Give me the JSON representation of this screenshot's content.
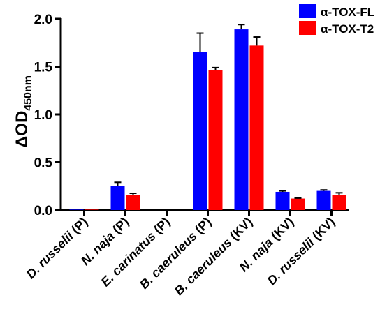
{
  "chart_data": {
    "type": "bar",
    "ylabel": "ΔOD",
    "ylabel_subscript": "450nm",
    "ylim": [
      0,
      2.0
    ],
    "yticks": [
      "0.0",
      "0.5",
      "1.0",
      "1.5",
      "2.0"
    ],
    "categories": [
      {
        "name": "D. russelii",
        "suffix": " (P)"
      },
      {
        "name": "N. naja",
        "suffix": " (P)"
      },
      {
        "name": "E. carinatus",
        "suffix": " (P)"
      },
      {
        "name": "B. caeruleus",
        "suffix": " (P)"
      },
      {
        "name": "B. caeruleus",
        "suffix": " (KV)"
      },
      {
        "name": "N. naja",
        "suffix": " (KV)"
      },
      {
        "name": "D. russelii",
        "suffix": " (KV)"
      }
    ],
    "series": [
      {
        "name": "α-TOX-FL",
        "color": "#0000ff",
        "values": [
          0.005,
          0.25,
          0.0,
          1.65,
          1.89,
          0.19,
          0.2
        ],
        "errors": [
          0.0,
          0.04,
          0.0,
          0.2,
          0.05,
          0.01,
          0.01
        ]
      },
      {
        "name": "α-TOX-T2",
        "color": "#ff0000",
        "values": [
          0.005,
          0.16,
          0.0,
          1.46,
          1.72,
          0.12,
          0.16
        ],
        "errors": [
          0.0,
          0.015,
          0.0,
          0.03,
          0.09,
          0.005,
          0.02
        ]
      }
    ],
    "legend_position": "top-right",
    "grid": false
  }
}
